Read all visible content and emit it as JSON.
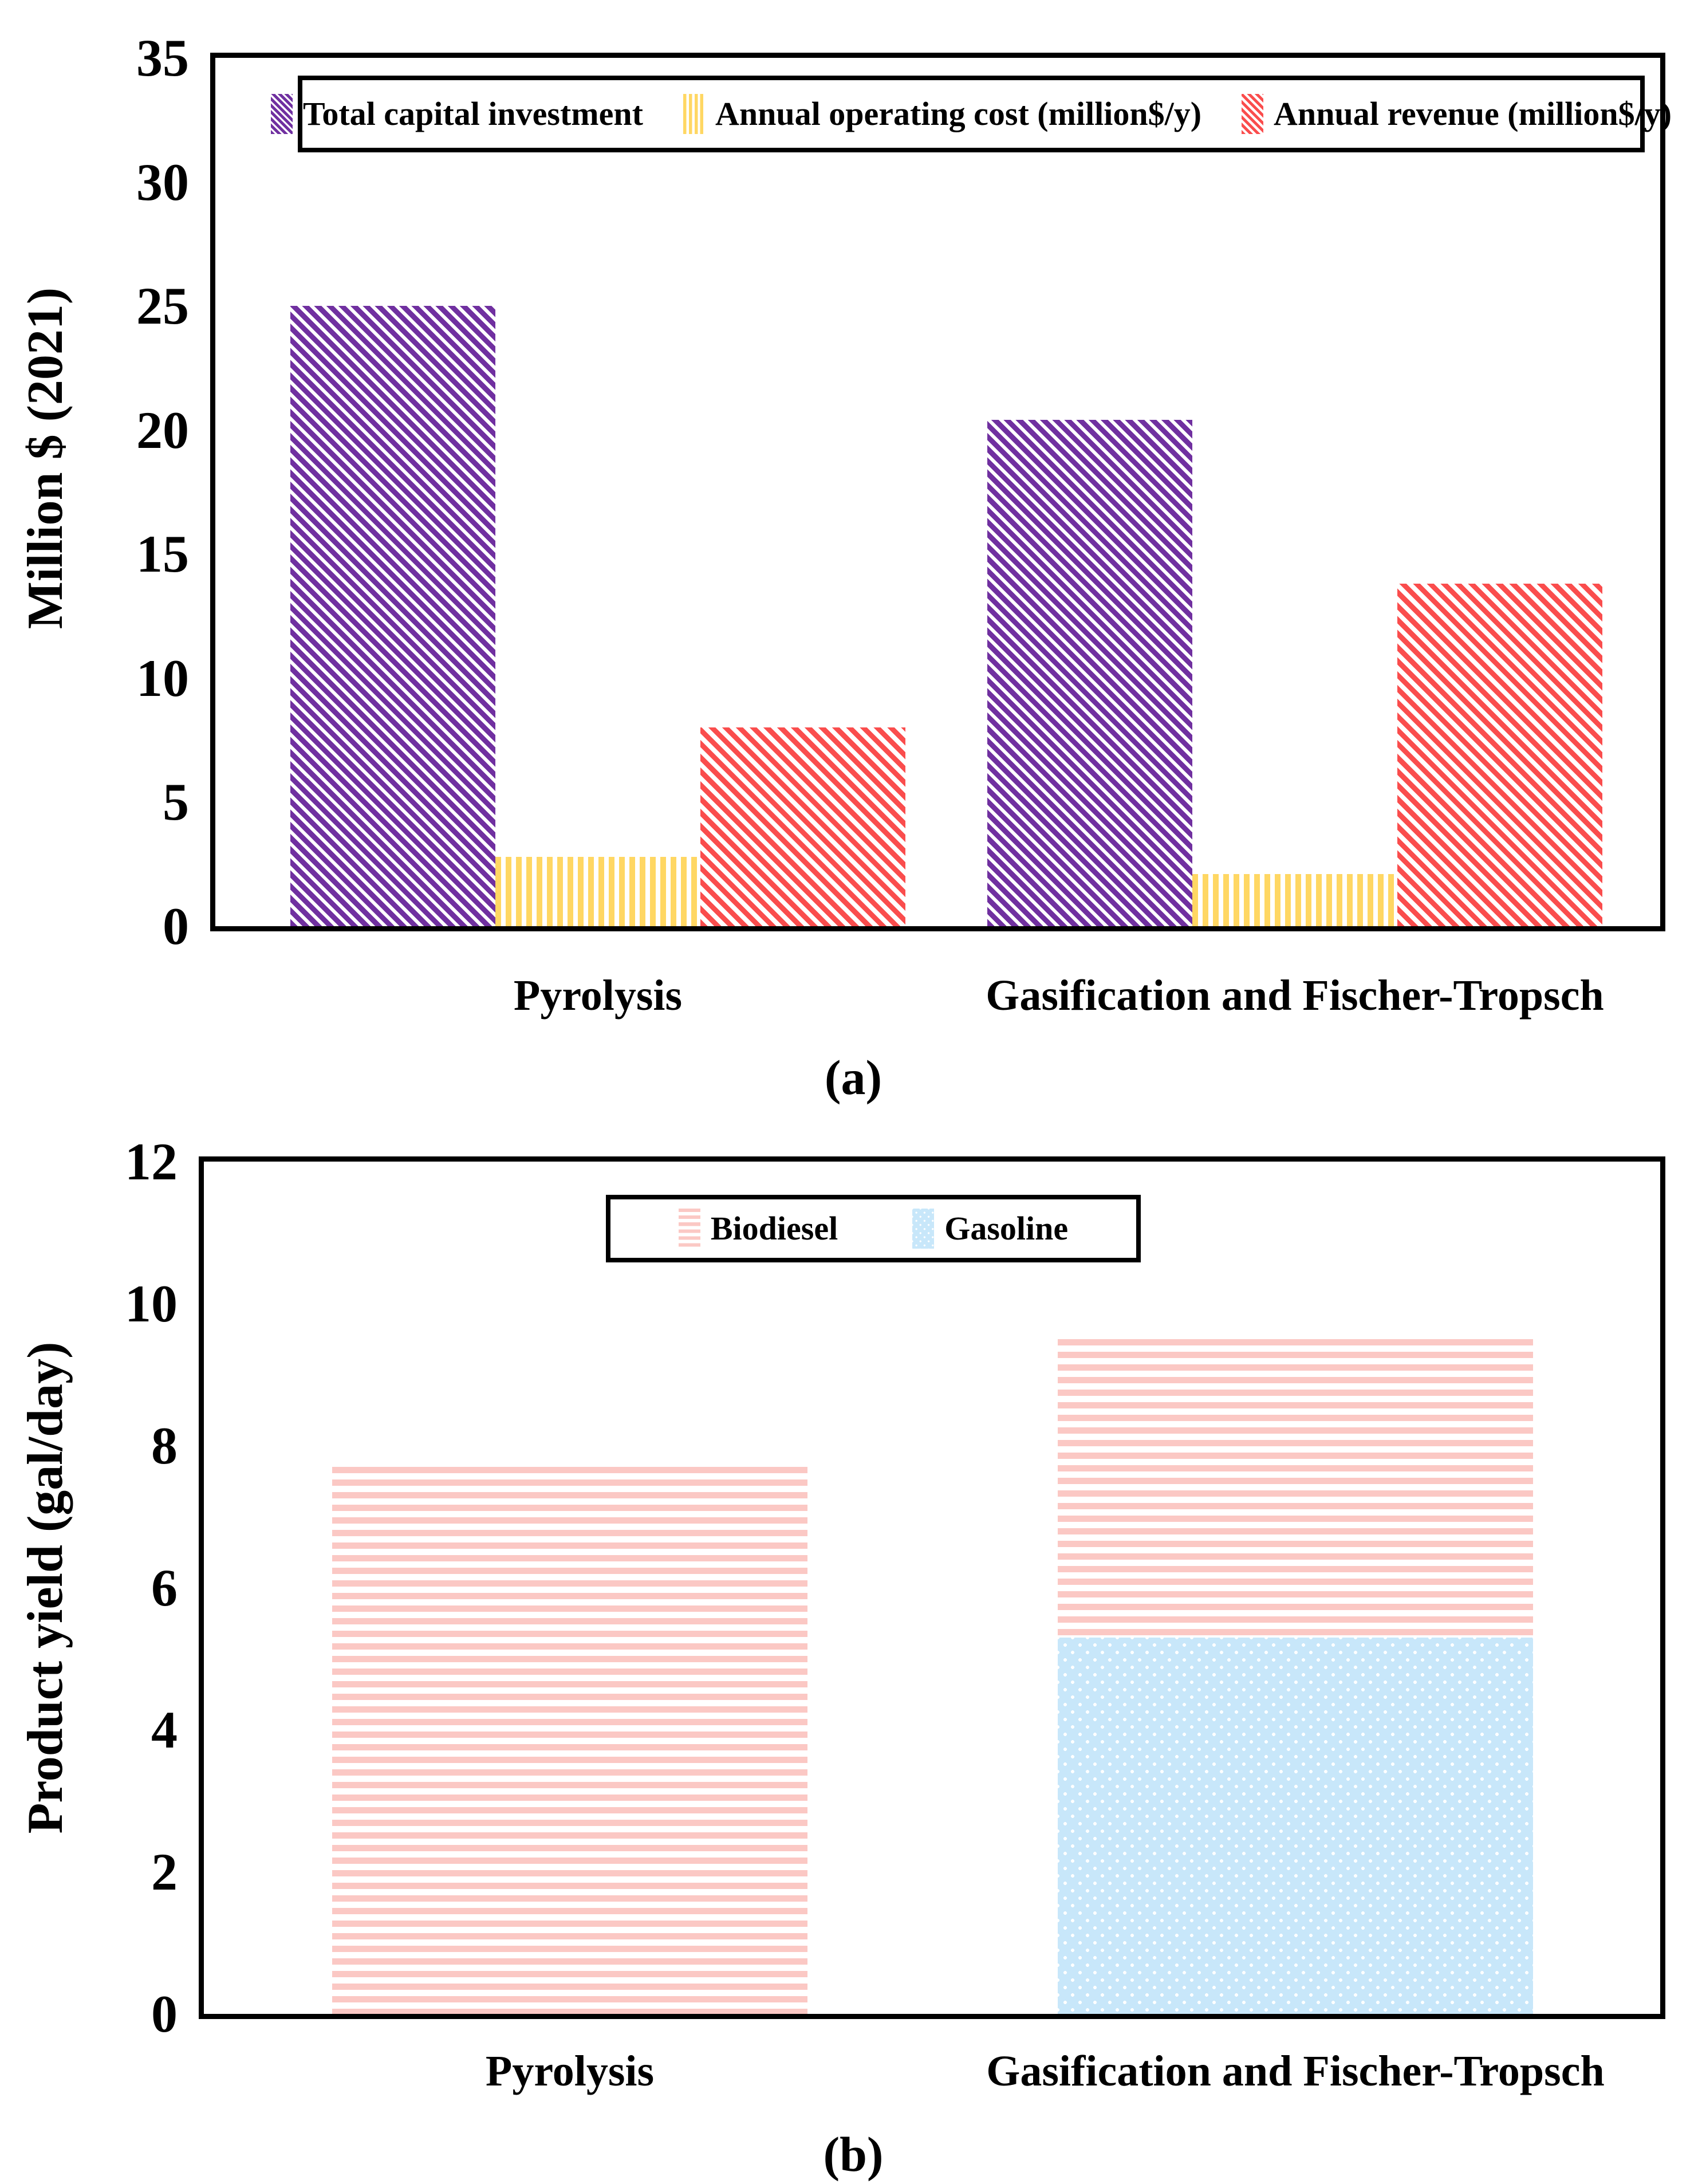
{
  "figure": {
    "caption_a": "(a)",
    "caption_b": "(b)"
  },
  "chart_data": [
    {
      "id": "a",
      "type": "bar",
      "ylabel": "Million $ (2021)",
      "ylim": [
        0,
        35
      ],
      "yticks": [
        0,
        5,
        10,
        15,
        20,
        25,
        30,
        35
      ],
      "grid": false,
      "legend_position": "top-inside",
      "categories": [
        "Pyrolysis",
        "Gasification and Fischer-Tropsch"
      ],
      "series": [
        {
          "name": "Total capital investment",
          "values": [
            25.0,
            20.4
          ],
          "color": "#7030A0",
          "pattern": "diagonal-dense"
        },
        {
          "name": "Annual operating cost (million$/y)",
          "values": [
            2.8,
            2.1
          ],
          "color": "#FFD763",
          "pattern": "vertical-stripes"
        },
        {
          "name": "Annual revenue (million$/y)",
          "values": [
            8.0,
            13.8
          ],
          "color": "#FA4D4D",
          "pattern": "diagonal-stripes"
        }
      ]
    },
    {
      "id": "b",
      "type": "stacked-bar",
      "ylabel": "Product yield (gal/day)",
      "ylim": [
        0,
        12
      ],
      "yticks": [
        0,
        2,
        4,
        6,
        8,
        10,
        12
      ],
      "grid": false,
      "legend_position": "top-right-inside",
      "categories": [
        "Pyrolysis",
        "Gasification and Fischer-Tropsch"
      ],
      "series": [
        {
          "name": "Gasoline",
          "values": [
            0,
            5.3
          ],
          "color": "#C8E7FA",
          "pattern": "dots"
        },
        {
          "name": "Biodiesel",
          "values": [
            7.7,
            4.2
          ],
          "color": "#FBC8C4",
          "pattern": "horizontal-stripes"
        }
      ],
      "legend_order": [
        "Biodiesel",
        "Gasoline"
      ]
    }
  ]
}
